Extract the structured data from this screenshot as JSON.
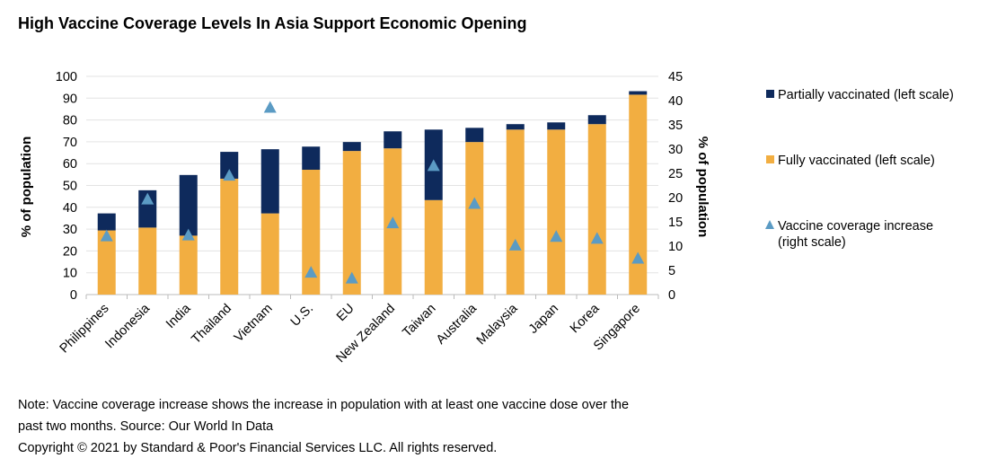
{
  "title": "High Vaccine Coverage Levels In Asia Support Economic Opening",
  "notes": [
    "Note: Vaccine coverage increase shows the increase in population with at least one vaccine dose over the",
    "past two months. Source: Our World In Data",
    "Copyright © 2021 by Standard & Poor's Financial Services LLC. All rights reserved."
  ],
  "chart_data": {
    "type": "bar",
    "stacked": true,
    "categories": [
      "Philippines",
      "Indonesia",
      "India",
      "Thailand",
      "Vietnam",
      "U.S.",
      "EU",
      "New Zealand",
      "Taiwan",
      "Australia",
      "Malaysia",
      "Japan",
      "Korea",
      "Singapore"
    ],
    "series": [
      {
        "name": "Fully vaccinated (left scale)",
        "axis": "left",
        "color": "#F2AE41",
        "values": [
          29.4,
          30.7,
          27.0,
          53.1,
          37.2,
          57.2,
          65.8,
          67.0,
          43.3,
          69.9,
          75.6,
          75.6,
          78.1,
          91.6
        ]
      },
      {
        "name": "Partially vaccinated (left scale)",
        "axis": "left",
        "color": "#0E2A5C",
        "values": [
          7.8,
          17.1,
          27.8,
          12.3,
          29.4,
          10.6,
          4.1,
          7.8,
          32.3,
          6.5,
          2.5,
          3.3,
          4.1,
          1.6
        ]
      },
      {
        "name": "Vaccine coverage increase (right scale)",
        "axis": "right",
        "type": "scatter",
        "marker": "triangle",
        "color": "#5B9BC4",
        "values": [
          12.1,
          19.7,
          12.3,
          24.6,
          38.6,
          4.6,
          3.4,
          14.8,
          26.6,
          18.8,
          10.2,
          12.0,
          11.6,
          7.5
        ]
      }
    ],
    "ylabel": "% of population",
    "y2label": "% of population",
    "ylim": [
      0,
      100
    ],
    "y2lim": [
      0,
      45
    ],
    "yticks": [
      0,
      10,
      20,
      30,
      40,
      50,
      60,
      70,
      80,
      90,
      100
    ],
    "y2ticks": [
      0,
      5,
      10,
      15,
      20,
      25,
      30,
      35,
      40,
      45
    ],
    "grid": true,
    "legend": "right"
  }
}
